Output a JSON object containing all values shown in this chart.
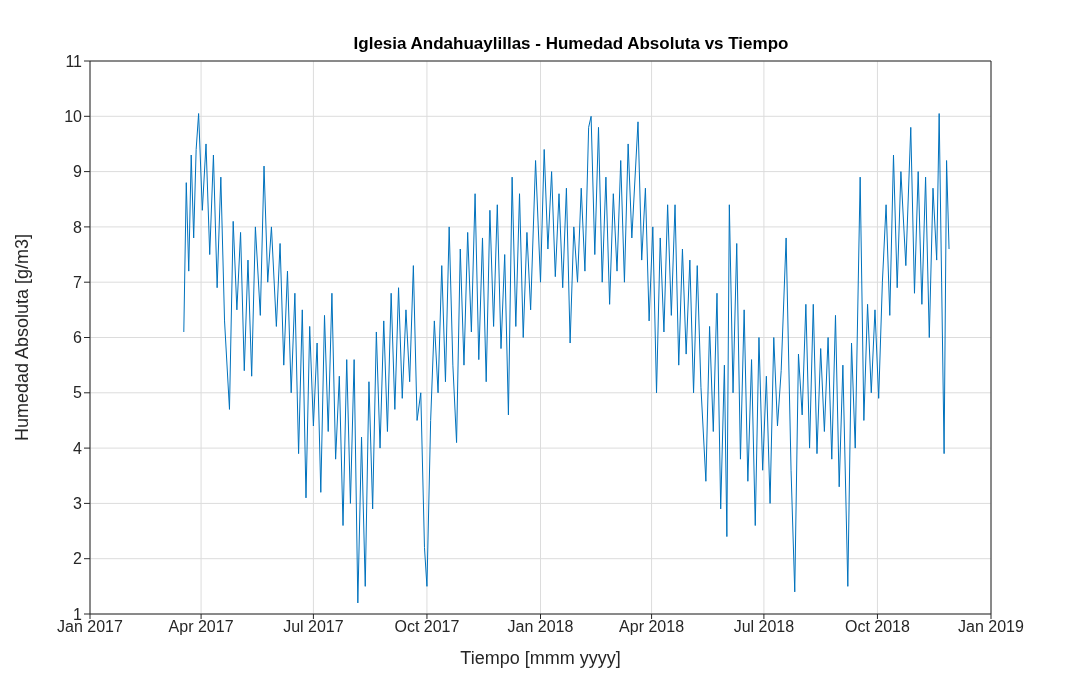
{
  "chart_data": {
    "type": "line",
    "title": "Iglesia Andahuaylillas - Humedad Absoluta vs Tiempo",
    "xlabel": "Tiempo [mmm yyyy]",
    "ylabel": "Humedad Absoluta [g/m3]",
    "x": [
      "2017-03-18",
      "2017-03-20",
      "2017-03-22",
      "2017-03-24",
      "2017-03-26",
      "2017-03-28",
      "2017-03-30",
      "2017-04-02",
      "2017-04-05",
      "2017-04-08",
      "2017-04-11",
      "2017-04-14",
      "2017-04-17",
      "2017-04-20",
      "2017-04-24",
      "2017-04-27",
      "2017-04-30",
      "2017-05-03",
      "2017-05-06",
      "2017-05-09",
      "2017-05-12",
      "2017-05-15",
      "2017-05-19",
      "2017-05-22",
      "2017-05-25",
      "2017-05-28",
      "2017-06-01",
      "2017-06-04",
      "2017-06-07",
      "2017-06-10",
      "2017-06-13",
      "2017-06-16",
      "2017-06-19",
      "2017-06-22",
      "2017-06-25",
      "2017-06-28",
      "2017-07-01",
      "2017-07-04",
      "2017-07-07",
      "2017-07-10",
      "2017-07-13",
      "2017-07-16",
      "2017-07-19",
      "2017-07-22",
      "2017-07-25",
      "2017-07-28",
      "2017-07-31",
      "2017-08-03",
      "2017-08-06",
      "2017-08-09",
      "2017-08-12",
      "2017-08-15",
      "2017-08-18",
      "2017-08-21",
      "2017-08-24",
      "2017-08-27",
      "2017-08-30",
      "2017-09-02",
      "2017-09-05",
      "2017-09-08",
      "2017-09-11",
      "2017-09-14",
      "2017-09-17",
      "2017-09-20",
      "2017-09-23",
      "2017-09-26",
      "2017-09-29",
      "2017-10-01",
      "2017-10-04",
      "2017-10-07",
      "2017-10-10",
      "2017-10-13",
      "2017-10-16",
      "2017-10-19",
      "2017-10-22",
      "2017-10-25",
      "2017-10-28",
      "2017-10-31",
      "2017-11-03",
      "2017-11-06",
      "2017-11-09",
      "2017-11-12",
      "2017-11-15",
      "2017-11-18",
      "2017-11-21",
      "2017-11-24",
      "2017-11-27",
      "2017-11-30",
      "2017-12-03",
      "2017-12-06",
      "2017-12-09",
      "2017-12-12",
      "2017-12-15",
      "2017-12-18",
      "2017-12-21",
      "2017-12-24",
      "2017-12-28",
      "2018-01-01",
      "2018-01-04",
      "2018-01-07",
      "2018-01-10",
      "2018-01-13",
      "2018-01-16",
      "2018-01-19",
      "2018-01-22",
      "2018-01-25",
      "2018-01-28",
      "2018-01-31",
      "2018-02-03",
      "2018-02-06",
      "2018-02-09",
      "2018-02-11",
      "2018-02-14",
      "2018-02-17",
      "2018-02-20",
      "2018-02-23",
      "2018-02-26",
      "2018-03-01",
      "2018-03-04",
      "2018-03-07",
      "2018-03-10",
      "2018-03-13",
      "2018-03-16",
      "2018-03-21",
      "2018-03-24",
      "2018-03-27",
      "2018-03-30",
      "2018-04-02",
      "2018-04-05",
      "2018-04-08",
      "2018-04-11",
      "2018-04-14",
      "2018-04-17",
      "2018-04-20",
      "2018-04-23",
      "2018-04-26",
      "2018-04-29",
      "2018-05-02",
      "2018-05-05",
      "2018-05-08",
      "2018-05-11",
      "2018-05-15",
      "2018-05-18",
      "2018-05-21",
      "2018-05-24",
      "2018-05-27",
      "2018-05-30",
      "2018-06-01",
      "2018-06-03",
      "2018-06-06",
      "2018-06-09",
      "2018-06-12",
      "2018-06-15",
      "2018-06-18",
      "2018-06-21",
      "2018-06-24",
      "2018-06-27",
      "2018-06-30",
      "2018-07-03",
      "2018-07-06",
      "2018-07-09",
      "2018-07-12",
      "2018-07-15",
      "2018-07-19",
      "2018-07-23",
      "2018-07-26",
      "2018-07-29",
      "2018-08-01",
      "2018-08-04",
      "2018-08-07",
      "2018-08-10",
      "2018-08-13",
      "2018-08-16",
      "2018-08-19",
      "2018-08-22",
      "2018-08-25",
      "2018-08-28",
      "2018-08-31",
      "2018-09-03",
      "2018-09-07",
      "2018-09-10",
      "2018-09-13",
      "2018-09-17",
      "2018-09-20",
      "2018-09-23",
      "2018-09-26",
      "2018-09-29",
      "2018-10-02",
      "2018-10-05",
      "2018-10-08",
      "2018-10-11",
      "2018-10-14",
      "2018-10-17",
      "2018-10-20",
      "2018-10-24",
      "2018-10-28",
      "2018-10-31",
      "2018-11-03",
      "2018-11-06",
      "2018-11-09",
      "2018-11-12",
      "2018-11-15",
      "2018-11-18",
      "2018-11-20",
      "2018-11-22",
      "2018-11-24",
      "2018-11-26",
      "2018-11-28"
    ],
    "values": [
      6.1,
      8.8,
      7.2,
      9.3,
      7.8,
      9.4,
      10.05,
      8.3,
      9.5,
      7.5,
      9.3,
      6.9,
      8.9,
      6.3,
      4.7,
      8.1,
      6.5,
      7.9,
      5.4,
      7.4,
      5.3,
      8.0,
      6.4,
      9.1,
      7.0,
      8.0,
      6.2,
      7.7,
      5.5,
      7.2,
      5.0,
      6.8,
      3.9,
      6.5,
      3.1,
      6.2,
      4.4,
      5.9,
      3.2,
      6.4,
      4.3,
      6.8,
      3.8,
      5.3,
      2.6,
      5.6,
      3.0,
      5.6,
      1.2,
      4.2,
      1.5,
      5.2,
      2.9,
      6.1,
      4.0,
      6.3,
      4.3,
      6.8,
      4.7,
      6.9,
      4.9,
      6.5,
      5.2,
      7.3,
      4.5,
      5.0,
      2.2,
      1.5,
      4.5,
      6.3,
      5.0,
      7.3,
      5.2,
      8.0,
      5.5,
      4.1,
      7.6,
      5.5,
      7.9,
      6.1,
      8.6,
      5.6,
      7.8,
      5.2,
      8.3,
      6.2,
      8.4,
      5.8,
      7.5,
      4.6,
      8.9,
      6.2,
      8.6,
      6.0,
      7.9,
      6.5,
      9.2,
      7.0,
      9.4,
      7.6,
      9.0,
      7.1,
      8.6,
      6.9,
      8.7,
      5.9,
      8.0,
      7.0,
      8.7,
      7.2,
      9.8,
      10.0,
      7.5,
      9.8,
      7.0,
      8.9,
      6.6,
      8.6,
      7.2,
      9.2,
      7.0,
      9.5,
      7.8,
      9.9,
      7.4,
      8.7,
      6.3,
      8.0,
      5.0,
      7.8,
      6.1,
      8.4,
      6.4,
      8.4,
      5.5,
      7.6,
      5.7,
      7.4,
      5.0,
      7.3,
      5.1,
      3.4,
      6.2,
      4.3,
      6.8,
      2.9,
      5.5,
      2.4,
      8.4,
      5.0,
      7.7,
      3.8,
      6.5,
      3.4,
      5.6,
      2.6,
      6.0,
      3.6,
      5.3,
      3.0,
      6.0,
      4.4,
      5.4,
      7.8,
      3.6,
      1.4,
      5.7,
      4.6,
      6.6,
      4.0,
      6.6,
      3.9,
      5.8,
      4.3,
      6.0,
      3.8,
      6.4,
      3.3,
      5.5,
      1.5,
      5.9,
      4.0,
      8.9,
      4.5,
      6.6,
      5.0,
      6.5,
      4.9,
      7.0,
      8.4,
      6.4,
      9.3,
      6.9,
      9.0,
      7.3,
      9.8,
      6.8,
      9.0,
      6.6,
      8.9,
      6.0,
      8.7,
      7.4,
      10.05,
      7.0,
      3.9,
      9.2,
      7.6
    ],
    "color": "#0072bd",
    "xlim": [
      "2017-01-01",
      "2019-01-01"
    ],
    "xticks": [
      {
        "value": "2017-01-01",
        "label": "Jan 2017"
      },
      {
        "value": "2017-04-01",
        "label": "Apr 2017"
      },
      {
        "value": "2017-07-01",
        "label": "Jul 2017"
      },
      {
        "value": "2017-10-01",
        "label": "Oct 2017"
      },
      {
        "value": "2018-01-01",
        "label": "Jan 2018"
      },
      {
        "value": "2018-04-01",
        "label": "Apr 2018"
      },
      {
        "value": "2018-07-01",
        "label": "Jul 2018"
      },
      {
        "value": "2018-10-01",
        "label": "Oct 2018"
      },
      {
        "value": "2019-01-01",
        "label": "Jan 2019"
      }
    ],
    "ylim": [
      1,
      11
    ],
    "yticks": [
      1,
      2,
      3,
      4,
      5,
      6,
      7,
      8,
      9,
      10,
      11
    ],
    "grid": true,
    "marker": "none",
    "line_style": "solid"
  }
}
